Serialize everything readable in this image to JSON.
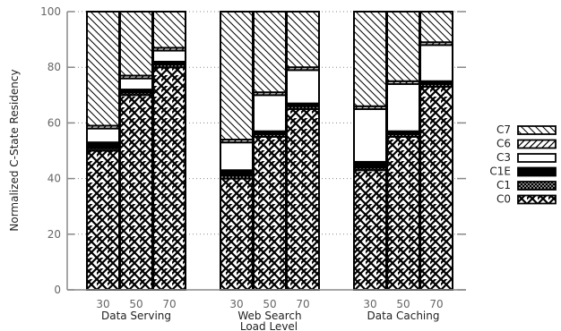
{
  "chart_data": {
    "type": "bar",
    "stacked": true,
    "ylabel": "Normalized C-State Residency",
    "xlabel": "Load Level",
    "ylim": [
      0,
      100
    ],
    "yticks": [
      0,
      20,
      40,
      60,
      80,
      100
    ],
    "grid": "horizontal-dotted",
    "legend_position": "right",
    "groups": [
      {
        "name": "Data Serving",
        "categories": [
          "30",
          "50",
          "70"
        ]
      },
      {
        "name": "Web Search",
        "categories": [
          "30",
          "50",
          "70"
        ]
      },
      {
        "name": "Data Caching",
        "categories": [
          "30",
          "50",
          "70"
        ]
      }
    ],
    "series": [
      {
        "name": "C0",
        "values": [
          50,
          70,
          80,
          40,
          55,
          65,
          43,
          55,
          73
        ]
      },
      {
        "name": "C1",
        "values": [
          1,
          1,
          1,
          1,
          1,
          1,
          1,
          1,
          1
        ]
      },
      {
        "name": "C1E",
        "values": [
          2,
          1,
          1,
          2,
          1,
          1,
          2,
          1,
          1
        ]
      },
      {
        "name": "C3",
        "values": [
          5,
          4,
          4,
          10,
          13,
          12,
          19,
          17,
          13
        ]
      },
      {
        "name": "C6",
        "values": [
          1,
          1,
          1,
          1,
          1,
          1,
          1,
          1,
          1
        ]
      },
      {
        "name": "C7",
        "values": [
          41,
          23,
          13,
          46,
          29,
          20,
          34,
          25,
          11
        ]
      }
    ]
  }
}
